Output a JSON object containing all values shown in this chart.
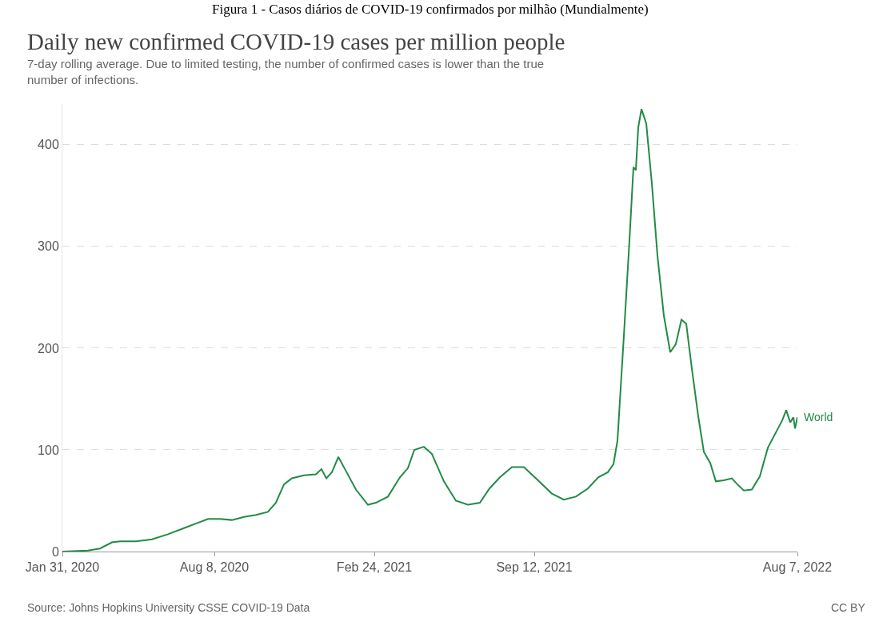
{
  "chart_data": {
    "type": "line",
    "title": "Daily new confirmed COVID-19 cases per million people",
    "subtitle": "7-day rolling average. Due to limited testing, the number of confirmed cases is lower than the true number of infections.",
    "annotations": [
      "Figura 1 - Casos diários de COVID-19 confirmados por milhão (Mundialmente)",
      "Source: Johns Hopkins University CSSE COVID-19 Data",
      "CC BY"
    ],
    "x": [
      "2020-01-31",
      "2020-03-03",
      "2020-03-18",
      "2020-04-02",
      "2020-04-12",
      "2020-05-02",
      "2020-05-22",
      "2020-06-11",
      "2020-07-01",
      "2020-07-21",
      "2020-07-31",
      "2020-08-15",
      "2020-08-30",
      "2020-09-14",
      "2020-09-29",
      "2020-10-14",
      "2020-10-24",
      "2020-11-03",
      "2020-11-13",
      "2020-11-28",
      "2020-12-13",
      "2020-12-20",
      "2020-12-26",
      "2021-01-02",
      "2021-01-10",
      "2021-01-19",
      "2021-02-01",
      "2021-02-16",
      "2021-02-26",
      "2021-03-13",
      "2021-03-28",
      "2021-04-07",
      "2021-04-15",
      "2021-04-27",
      "2021-05-07",
      "2021-05-22",
      "2021-06-06",
      "2021-06-21",
      "2021-07-06",
      "2021-07-18",
      "2021-07-31",
      "2021-08-15",
      "2021-08-30",
      "2021-09-14",
      "2021-10-04",
      "2021-10-19",
      "2021-11-03",
      "2021-11-18",
      "2021-12-01",
      "2021-12-13",
      "2021-12-20",
      "2021-12-25",
      "2022-01-02",
      "2022-01-09",
      "2022-01-14",
      "2022-01-17",
      "2022-01-20",
      "2022-01-24",
      "2022-01-30",
      "2022-02-06",
      "2022-02-13",
      "2022-02-21",
      "2022-03-01",
      "2022-03-08",
      "2022-03-15",
      "2022-03-21",
      "2022-03-28",
      "2022-04-05",
      "2022-04-12",
      "2022-04-20",
      "2022-04-27",
      "2022-05-07",
      "2022-05-17",
      "2022-05-24",
      "2022-06-01",
      "2022-06-11",
      "2022-06-21",
      "2022-07-01",
      "2022-07-11",
      "2022-07-19",
      "2022-07-24",
      "2022-07-29",
      "2022-08-02",
      "2022-08-04",
      "2022-08-07"
    ],
    "series": [
      {
        "name": "World",
        "color": "#228b45",
        "values": [
          0,
          1,
          3,
          9,
          10,
          10,
          12,
          17,
          23,
          29,
          32,
          32,
          31,
          34,
          36,
          39,
          48,
          66,
          72,
          75,
          76,
          81,
          72,
          78,
          93,
          80,
          61,
          46,
          48,
          54,
          73,
          82,
          100,
          103,
          96,
          69,
          50,
          46,
          48,
          62,
          73,
          83,
          83,
          72,
          57,
          51,
          54,
          62,
          73,
          78,
          86,
          109,
          212,
          306,
          378,
          375,
          417,
          435,
          421,
          362,
          291,
          232,
          196,
          204,
          228,
          224,
          180,
          133,
          98,
          87,
          69,
          70,
          72,
          66,
          60,
          61,
          74,
          102,
          117,
          129,
          139,
          127,
          132,
          121,
          132
        ]
      }
    ],
    "xlim": [
      "2020-01-31",
      "2022-08-07"
    ],
    "xticks": [
      {
        "value": "2020-01-31",
        "label": "Jan 31, 2020"
      },
      {
        "value": "2020-08-08",
        "label": "Aug 8, 2020"
      },
      {
        "value": "2021-02-24",
        "label": "Feb 24, 2021"
      },
      {
        "value": "2021-09-12",
        "label": "Sep 12, 2021"
      },
      {
        "value": "2022-08-07",
        "label": "Aug 7, 2022"
      }
    ],
    "ylim": [
      0,
      440
    ],
    "yticks": [
      0,
      100,
      200,
      300,
      400
    ],
    "grid": "y",
    "legend": false,
    "line_style": "solid"
  }
}
